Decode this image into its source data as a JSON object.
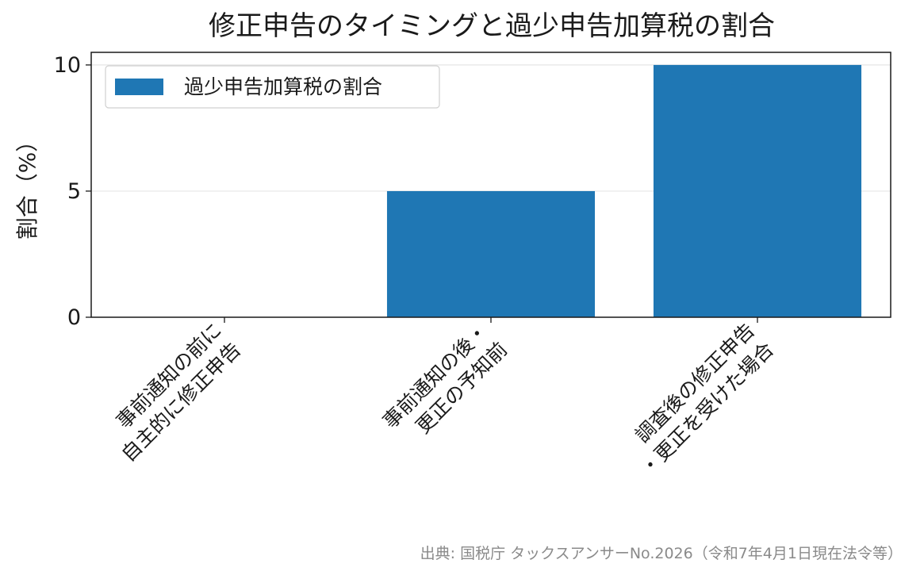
{
  "chart_data": {
    "type": "bar",
    "title": "修正申告のタイミングと過少申告加算税の割合",
    "ylabel": "割合（%）",
    "xlabel": "",
    "categories": [
      [
        "事前通知の前に",
        "自主的に修正申告"
      ],
      [
        "事前通知の後・",
        "更正の予知前"
      ],
      [
        "調査後の修正申告",
        "・更正を受けた場合"
      ]
    ],
    "series": [
      {
        "name": "過少申告加算税の割合",
        "values": [
          0,
          5,
          10
        ],
        "color": "#1f77b4"
      }
    ],
    "ylim": [
      0,
      10.5
    ],
    "yticks": [
      0,
      5,
      10
    ],
    "grid": "y",
    "legend_position": "upper-left",
    "source": "出典: 国税庁 タックスアンサーNo.2026（令和7年4月1日現在法令等）"
  }
}
